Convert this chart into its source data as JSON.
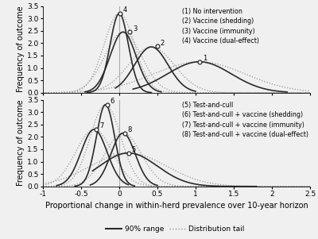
{
  "xlim": [
    -1,
    2.5
  ],
  "ylim": [
    0,
    3.5
  ],
  "xlabel": "Proportional change in within-herd prevalence over 10-year horizon",
  "ylabel": "Frequency of outcome",
  "yticks": [
    0,
    0.5,
    1,
    1.5,
    2,
    2.5,
    3,
    3.5
  ],
  "xticks": [
    -1,
    -0.5,
    0,
    0.5,
    1,
    1.5,
    2,
    2.5
  ],
  "xticklabels": [
    "-1",
    "-0.5",
    "0",
    "0.5",
    "1",
    "1.5",
    "2",
    "2.5"
  ],
  "legend_top": [
    "(1) No intervention",
    "(2) Vaccine (shedding)",
    "(3) Vaccine (immunity)",
    "(4) Vaccine (dual-effect)"
  ],
  "legend_bot": [
    "(5) Test-and-cull",
    "(6) Test-and-cull + vaccine (shedding)",
    "(7) Test-and-cull + vaccine (immunity)",
    "(8) Test-and-cull + vaccine (dual-effect)"
  ],
  "curves_top": [
    {
      "label": "1",
      "solid_mean": 1.05,
      "solid_std": 0.42,
      "solid_amp": 1.25,
      "solid_xleft": 0.18,
      "solid_xright": 2.2,
      "dot_mean": 1.05,
      "dot_std": 0.6,
      "dot_amp": 1.25,
      "peak_x": 1.05,
      "peak_y": 1.25
    },
    {
      "label": "2",
      "solid_mean": 0.42,
      "solid_std": 0.22,
      "solid_amp": 1.85,
      "solid_xleft": -0.05,
      "solid_xright": 1.0,
      "dot_mean": 0.42,
      "dot_std": 0.3,
      "dot_amp": 1.85,
      "peak_x": 0.5,
      "peak_y": 1.88
    },
    {
      "label": "3",
      "solid_mean": 0.05,
      "solid_std": 0.17,
      "solid_amp": 2.45,
      "solid_xleft": -0.45,
      "solid_xright": 0.55,
      "dot_mean": 0.05,
      "dot_std": 0.24,
      "dot_amp": 2.45,
      "peak_x": 0.14,
      "peak_y": 2.45
    },
    {
      "label": "4",
      "solid_mean": 0.0,
      "solid_std": 0.12,
      "solid_amp": 3.2,
      "solid_xleft": -0.42,
      "solid_xright": 0.42,
      "dot_mean": 0.0,
      "dot_std": 0.2,
      "dot_amp": 3.2,
      "peak_x": 0.01,
      "peak_y": 3.2
    }
  ],
  "curves_bot": [
    {
      "label": "5",
      "solid_mean": 0.12,
      "solid_std": 0.38,
      "solid_amp": 1.35,
      "solid_xleft": -0.35,
      "solid_xright": 1.8,
      "dot_mean": 0.12,
      "dot_std": 0.5,
      "dot_amp": 1.35,
      "peak_x": 0.12,
      "peak_y": 1.35
    },
    {
      "label": "6",
      "solid_mean": -0.18,
      "solid_std": 0.12,
      "solid_amp": 3.3,
      "solid_xleft": -0.58,
      "solid_xright": 0.2,
      "dot_mean": -0.18,
      "dot_std": 0.2,
      "dot_amp": 3.3,
      "peak_x": -0.16,
      "peak_y": 3.3
    },
    {
      "label": "7",
      "solid_mean": -0.33,
      "solid_std": 0.17,
      "solid_amp": 2.3,
      "solid_xleft": -0.82,
      "solid_xright": 0.12,
      "dot_mean": -0.33,
      "dot_std": 0.24,
      "dot_amp": 2.3,
      "peak_x": -0.3,
      "peak_y": 2.3
    },
    {
      "label": "8",
      "solid_mean": 0.05,
      "solid_std": 0.16,
      "solid_amp": 2.15,
      "solid_xleft": -0.38,
      "solid_xright": 0.5,
      "dot_mean": 0.05,
      "dot_std": 0.24,
      "dot_amp": 2.15,
      "peak_x": 0.07,
      "peak_y": 2.15
    }
  ],
  "vline_x": 0.0,
  "line_color": "#2a2a2a",
  "dot_color": "#999999",
  "background_color": "#f0f0f0",
  "legend_fontsize": 5.8,
  "axis_fontsize": 7.0,
  "tick_fontsize": 6.5
}
